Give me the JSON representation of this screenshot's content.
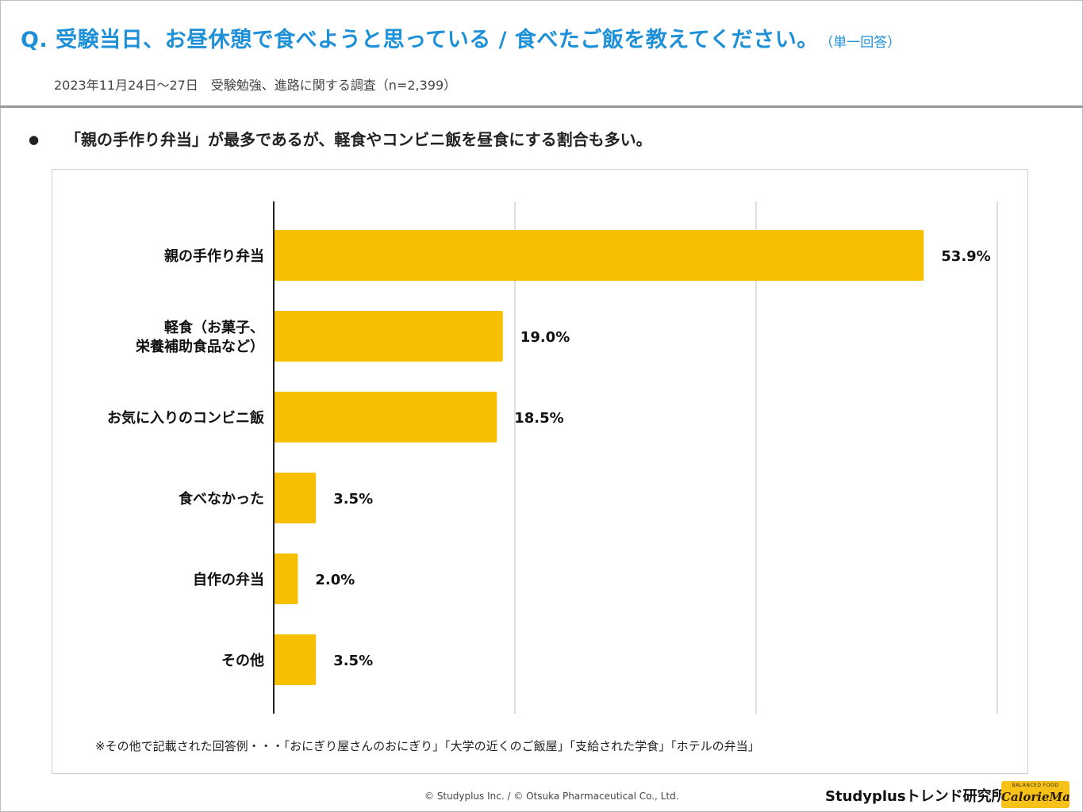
{
  "header": {
    "title": "Q. 受験当日、お昼休憩で食べようと思っている / 食べたご飯を教えてください。",
    "title_note": "（単一回答）",
    "survey": "2023年11月24日～27日　受験勉強、進路に関する調査（n=2,399）"
  },
  "finding": {
    "bullet": "●",
    "text": "「親の手作り弁当」が最多であるが、軽食やコンビニ飯を昼食にする割合も多い。"
  },
  "chart_data": {
    "type": "bar",
    "orientation": "horizontal",
    "categories": [
      [
        "親の手作り弁当"
      ],
      [
        "軽食（お菓子、",
        "栄養補助食品など）"
      ],
      [
        "お気に入りのコンビニ飯"
      ],
      [
        "食べなかった"
      ],
      [
        "自作の弁当"
      ],
      [
        "その他"
      ]
    ],
    "values": [
      53.9,
      19.0,
      18.5,
      3.5,
      2.0,
      3.5
    ],
    "value_labels": [
      "53.9%",
      "19.0%",
      "18.5%",
      "3.5%",
      "2.0%",
      "3.5%"
    ],
    "xlim": [
      0,
      60
    ],
    "gridlines": [
      20,
      40,
      60
    ],
    "bar_color": "#f6bf00",
    "grid": true
  },
  "note": "※その他で記載された回答例・・・「おにぎり屋さんのおにぎり」「大学の近くのご飯屋」「支給された学食」「ホテルの弁当」",
  "footer": {
    "copyright": "© Studyplus Inc. / © Otsuka Pharmaceutical Co., Ltd.",
    "brand": "Studyplusトレンド研究所",
    "logo_small": "BALANCED FOOD",
    "logo_main": "CalorieMate"
  },
  "colors": {
    "title": "#1e90d8",
    "bar": "#f6bf00"
  }
}
